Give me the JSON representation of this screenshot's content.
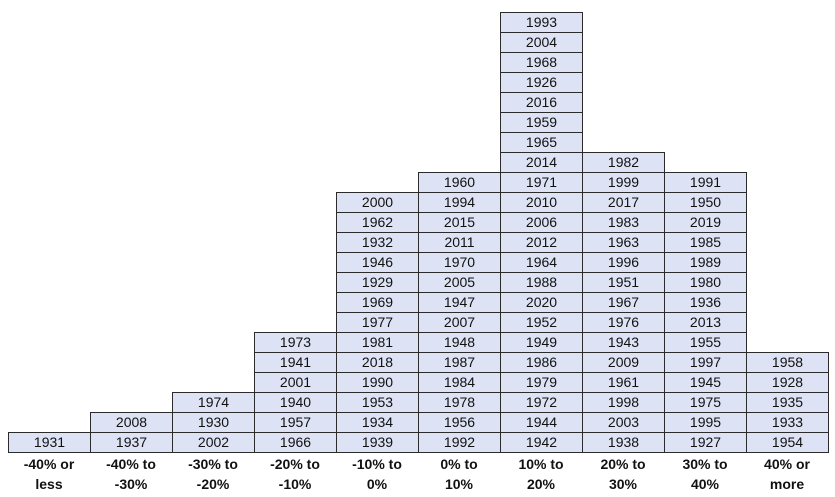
{
  "chart_data": {
    "type": "table",
    "categories": [
      "-40% or less",
      "-40% to -30%",
      "-30% to -20%",
      "-20% to -10%",
      "-10% to 0%",
      "0% to 10%",
      "10% to 20%",
      "20% to 30%",
      "30% to 40%",
      "40% or more"
    ],
    "columns": [
      {
        "category": "-40% or less",
        "years": [
          "1931"
        ]
      },
      {
        "category": "-40% to -30%",
        "years": [
          "1937",
          "2008"
        ]
      },
      {
        "category": "-30% to -20%",
        "years": [
          "2002",
          "1930",
          "1974"
        ]
      },
      {
        "category": "-20% to -10%",
        "years": [
          "1966",
          "1957",
          "1940",
          "2001",
          "1941",
          "1973"
        ]
      },
      {
        "category": "-10% to 0%",
        "years": [
          "1939",
          "1934",
          "1953",
          "1990",
          "2018",
          "1981",
          "1977",
          "1969",
          "1929",
          "1946",
          "1932",
          "1962",
          "2000"
        ]
      },
      {
        "category": "0% to 10%",
        "years": [
          "1992",
          "1956",
          "1978",
          "1984",
          "1987",
          "1948",
          "2007",
          "1947",
          "2005",
          "1970",
          "2011",
          "2015",
          "1994",
          "1960"
        ]
      },
      {
        "category": "10% to 20%",
        "years": [
          "1942",
          "1944",
          "1972",
          "1979",
          "1986",
          "1949",
          "1952",
          "2020",
          "1988",
          "1964",
          "2012",
          "2006",
          "2010",
          "1971",
          "2014",
          "1965",
          "1959",
          "2016",
          "1926",
          "1968",
          "2004",
          "1993"
        ]
      },
      {
        "category": "20% to 30%",
        "years": [
          "1938",
          "2003",
          "1998",
          "1961",
          "2009",
          "1943",
          "1976",
          "1967",
          "1951",
          "1996",
          "1963",
          "1983",
          "2017",
          "1999",
          "1982"
        ]
      },
      {
        "category": "30% to 40%",
        "years": [
          "1927",
          "1995",
          "1975",
          "1945",
          "1997",
          "1955",
          "2013",
          "1936",
          "1980",
          "1989",
          "1985",
          "2019",
          "1950",
          "1991"
        ]
      },
      {
        "category": "40% or more",
        "years": [
          "1954",
          "1933",
          "1935",
          "1928",
          "1958"
        ]
      }
    ],
    "axis_labels": [
      [
        "-40% or",
        "less"
      ],
      [
        "-40% to",
        "-30%"
      ],
      [
        "-30% to",
        "-20%"
      ],
      [
        "-20% to",
        "-10%"
      ],
      [
        "-10% to",
        "0%"
      ],
      [
        "0% to",
        "10%"
      ],
      [
        "10% to",
        "20%"
      ],
      [
        "20% to",
        "30%"
      ],
      [
        "30% to",
        "40%"
      ],
      [
        "40% or",
        "more"
      ]
    ],
    "cell_color": "#dde3f5",
    "border_color": "#2b2b2b"
  }
}
